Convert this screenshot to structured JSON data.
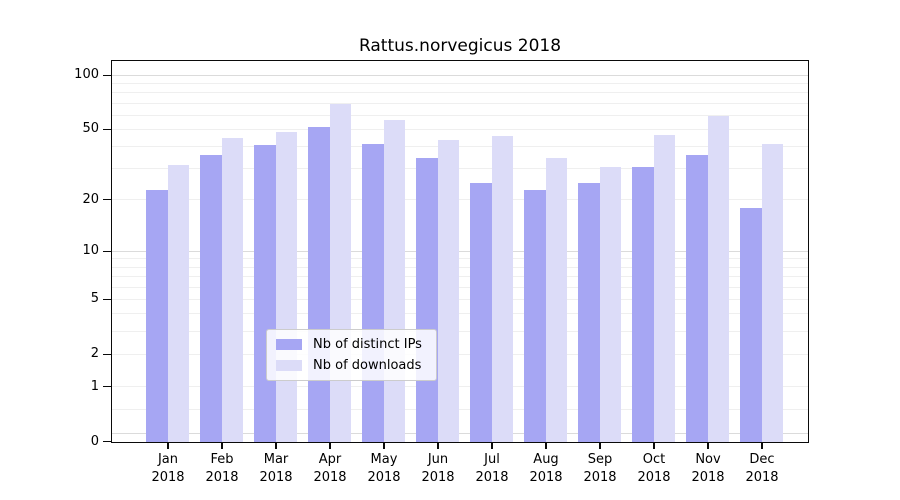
{
  "chart_data": {
    "type": "bar",
    "title": "Rattus.norvegicus 2018",
    "categories": [
      "Jan",
      "Feb",
      "Mar",
      "Apr",
      "May",
      "Jun",
      "Jul",
      "Aug",
      "Sep",
      "Oct",
      "Nov",
      "Dec"
    ],
    "year_label": "2018",
    "series": [
      {
        "name": "Nb of distinct IPs",
        "color": "#a6a6f3",
        "values": [
          23,
          36,
          41,
          52,
          42,
          35,
          25,
          23,
          25,
          31,
          36,
          18
        ]
      },
      {
        "name": "Nb of downloads",
        "color": "#dcdcf8",
        "values": [
          32,
          45,
          49,
          70,
          57,
          44,
          46,
          35,
          31,
          47,
          60,
          42
        ]
      }
    ],
    "yscale": "log10(value+1)",
    "yticks": [
      0,
      1,
      2,
      5,
      10,
      20,
      50,
      100
    ],
    "ylim": [
      0,
      119
    ],
    "grid": "horizontal",
    "grid_values": [
      0.1,
      0.5,
      1,
      2,
      3,
      4,
      5,
      6,
      7,
      8,
      9,
      10,
      20,
      30,
      40,
      50,
      60,
      70,
      80,
      90,
      100
    ],
    "grid_emphasis": [
      0.1,
      10,
      100
    ],
    "legend_position": "lower center",
    "colors": {
      "grid": "#efefef",
      "grid_emphasis": "#dbdbdb",
      "spine": "#0a0a0a",
      "text": "#000000",
      "background": "#ffffff"
    }
  }
}
